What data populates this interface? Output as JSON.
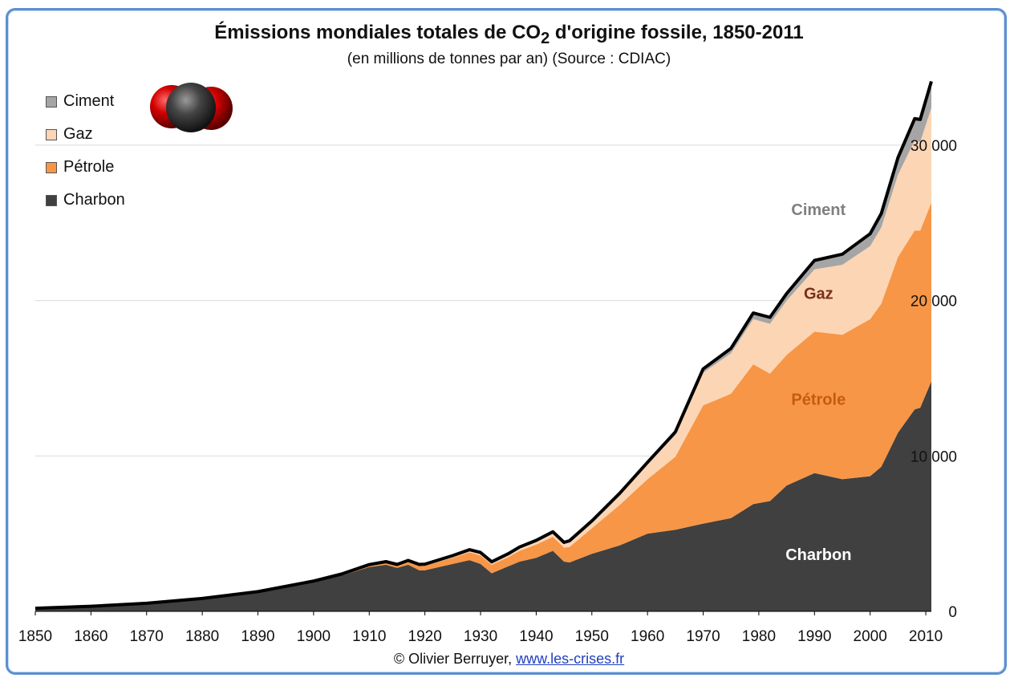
{
  "header": {
    "title_main": "Émissions mondiales totales de CO",
    "title_sub": "2",
    "title_rest": " d'origine fossile, 1850-2011",
    "subtitle": "(en millions de tonnes par an) (Source : CDIAC)"
  },
  "footer": {
    "copyright": "© Olivier Berruyer,",
    "link": "www.les-crises.fr"
  },
  "colors": {
    "charbon": "#404040",
    "petrole": "#f79646",
    "gaz": "#fcd5b4",
    "ciment": "#a5a5a5",
    "total_line": "#000000",
    "gridline": "#d9d9d9",
    "frame": "#5b8fd1"
  },
  "legend": [
    {
      "key": "ciment",
      "label": "Ciment"
    },
    {
      "key": "gaz",
      "label": "Gaz"
    },
    {
      "key": "petrole",
      "label": "Pétrole"
    },
    {
      "key": "charbon",
      "label": "Charbon"
    }
  ],
  "chart_data": {
    "type": "area",
    "stacked": true,
    "title": "Émissions mondiales totales de CO2 d'origine fossile, 1850-2011",
    "subtitle": "(en millions de tonnes par an) (Source : CDIAC)",
    "xlabel": "",
    "ylabel": "",
    "xlim": [
      1850,
      2011
    ],
    "ylim": [
      0,
      35000
    ],
    "x_ticks": [
      1850,
      1860,
      1870,
      1880,
      1890,
      1900,
      1910,
      1920,
      1930,
      1940,
      1950,
      1960,
      1970,
      1980,
      1990,
      2000,
      2010
    ],
    "y_ticks": [
      0,
      10000,
      20000,
      30000
    ],
    "y_tick_labels": [
      "0",
      "10 000",
      "20 000",
      "30 000"
    ],
    "y_axis_side": "right",
    "grid": true,
    "legend_position": "top-left",
    "x": [
      1850,
      1860,
      1870,
      1880,
      1890,
      1900,
      1905,
      1910,
      1913,
      1915,
      1917,
      1919,
      1920,
      1925,
      1928,
      1930,
      1932,
      1935,
      1937,
      1940,
      1943,
      1945,
      1946,
      1950,
      1955,
      1960,
      1965,
      1970,
      1975,
      1979,
      1982,
      1985,
      1990,
      1995,
      2000,
      2002,
      2005,
      2008,
      2009,
      2011
    ],
    "series": [
      {
        "name": "Charbon",
        "key": "charbon",
        "values": [
          200,
          330,
          520,
          830,
          1250,
          1900,
          2300,
          2850,
          3000,
          2800,
          3000,
          2650,
          2650,
          3050,
          3300,
          3050,
          2450,
          2900,
          3200,
          3450,
          3900,
          3200,
          3150,
          3700,
          4250,
          5000,
          5250,
          5650,
          6000,
          6900,
          7100,
          8100,
          8900,
          8500,
          8700,
          9300,
          11500,
          13000,
          13100,
          14800
        ]
      },
      {
        "name": "Pétrole",
        "key": "petrole",
        "values": [
          0,
          0,
          0,
          0,
          10,
          30,
          60,
          100,
          130,
          150,
          200,
          280,
          300,
          400,
          500,
          550,
          550,
          600,
          700,
          850,
          900,
          900,
          1000,
          1650,
          2600,
          3500,
          4700,
          7600,
          8000,
          9000,
          8200,
          8400,
          9100,
          9300,
          10100,
          10500,
          11300,
          11500,
          11400,
          11500
        ]
      },
      {
        "name": "Gaz",
        "key": "gaz",
        "values": [
          0,
          0,
          0,
          0,
          10,
          20,
          30,
          40,
          50,
          50,
          60,
          70,
          70,
          110,
          130,
          150,
          150,
          170,
          190,
          210,
          270,
          300,
          350,
          400,
          650,
          950,
          1400,
          2100,
          2600,
          2900,
          3200,
          3500,
          4000,
          4500,
          4700,
          4900,
          5300,
          5800,
          5700,
          6100
        ]
      },
      {
        "name": "Ciment",
        "key": "ciment",
        "values": [
          0,
          0,
          0,
          0,
          0,
          0,
          10,
          20,
          20,
          20,
          20,
          20,
          20,
          30,
          40,
          40,
          40,
          40,
          50,
          60,
          50,
          40,
          50,
          70,
          100,
          140,
          200,
          250,
          320,
          400,
          420,
          450,
          580,
          680,
          800,
          900,
          1100,
          1400,
          1450,
          1700
        ]
      }
    ],
    "annotations": [
      {
        "series": "ciment",
        "text": "Ciment",
        "color": "#7f7f7f",
        "year": 1990,
        "value": 25500
      },
      {
        "series": "gaz",
        "text": "Gaz",
        "color": "#7b2e1e",
        "year": 1990,
        "value": 20100
      },
      {
        "series": "petrole",
        "text": "Pétrole",
        "color": "#c55a11",
        "year": 1990,
        "value": 13300
      },
      {
        "series": "charbon",
        "text": "Charbon",
        "color": "#ffffff",
        "year": 1990,
        "value": 3300
      }
    ]
  }
}
